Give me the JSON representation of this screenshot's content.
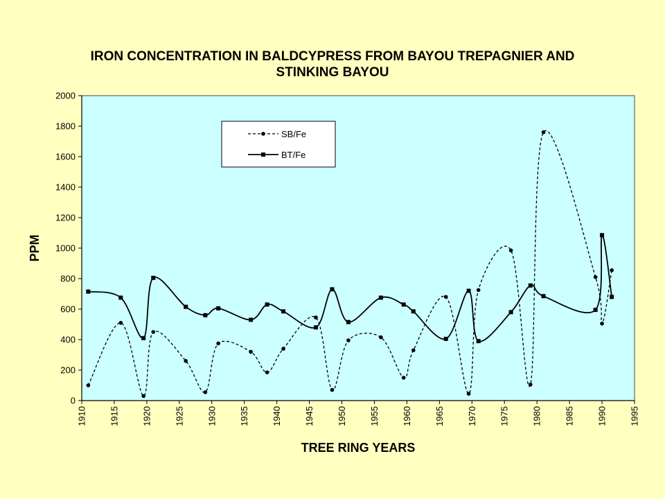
{
  "chart_data": {
    "type": "line",
    "title_lines": [
      "IRON CONCENTRATION IN BALDCYPRESS FROM BAYOU TREPAGNIER AND",
      "STINKING BAYOU"
    ],
    "xlabel": "TREE RING YEARS",
    "ylabel": "PPM",
    "xlim": [
      1910,
      1995
    ],
    "ylim": [
      0,
      2000
    ],
    "xticks": [
      "1910",
      "1915",
      "1920",
      "1925",
      "1930",
      "1935",
      "1940",
      "1945",
      "1950",
      "1955",
      "1960",
      "1965",
      "1970",
      "1975",
      "1980",
      "1985",
      "1990",
      "1995"
    ],
    "yticks": [
      "0",
      "200",
      "400",
      "600",
      "800",
      "1000",
      "1200",
      "1400",
      "1600",
      "1800",
      "2000"
    ],
    "grid": false,
    "legend_position": "top-left",
    "series": [
      {
        "name": "SB/Fe",
        "style": "dashed",
        "marker": "circle",
        "x": [
          1911,
          1916,
          1919.5,
          1921,
          1926,
          1929,
          1931,
          1936,
          1938.5,
          1941,
          1946,
          1948.5,
          1951,
          1956,
          1959.5,
          1961,
          1966,
          1969.5,
          1971,
          1976,
          1979,
          1981,
          1989,
          1990,
          1991.5
        ],
        "y": [
          100,
          510,
          30,
          450,
          260,
          55,
          375,
          320,
          185,
          340,
          545,
          70,
          395,
          415,
          150,
          330,
          680,
          45,
          725,
          985,
          105,
          1760,
          810,
          505,
          855
        ]
      },
      {
        "name": "BT/Fe",
        "style": "solid",
        "marker": "square",
        "x": [
          1911,
          1916,
          1919.5,
          1921,
          1926,
          1929,
          1931,
          1936,
          1938.5,
          1941,
          1946,
          1948.5,
          1951,
          1956,
          1959.5,
          1961,
          1966,
          1969.5,
          1971,
          1976,
          1979,
          1981,
          1989,
          1990,
          1991.5
        ],
        "y": [
          715,
          675,
          410,
          805,
          615,
          560,
          605,
          530,
          630,
          585,
          480,
          730,
          515,
          675,
          630,
          585,
          405,
          720,
          390,
          580,
          755,
          685,
          595,
          1085,
          680
        ]
      }
    ],
    "colors": {
      "page_background": "#FFFFC0",
      "plot_background": "#CCFFFF",
      "series_line": "#000000",
      "legend_background": "#FFFFFF"
    }
  }
}
